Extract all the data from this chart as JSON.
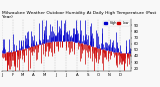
{
  "title": "Milwaukee Weather Outdoor Humidity At Daily High Temperature (Past Year)",
  "yticks": [
    20,
    30,
    40,
    50,
    60,
    70,
    80,
    90
  ],
  "ylim": [
    15,
    100
  ],
  "num_days": 365,
  "seed": 42,
  "bg_color": "#f8f8f8",
  "bar_color_high": "#0000cc",
  "bar_color_low": "#cc0000",
  "grid_color": "#aaaaaa",
  "legend_label_high": "High",
  "legend_label_low": "Low",
  "title_fontsize": 3.2,
  "tick_fontsize": 2.8,
  "avg_humidity": 55,
  "bar_linewidth": 0.5,
  "month_starts": [
    0,
    31,
    59,
    90,
    120,
    151,
    181,
    212,
    243,
    273,
    304,
    334
  ],
  "month_labels": [
    "J",
    "F",
    "M",
    "A",
    "M",
    "J",
    "J",
    "A",
    "S",
    "O",
    "N",
    "D"
  ]
}
